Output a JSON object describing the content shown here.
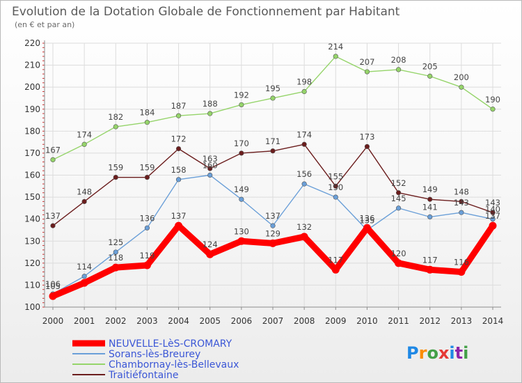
{
  "chart_data": {
    "type": "line",
    "title": "Evolution de la Dotation Globale de Fonctionnement par Habitant",
    "subtitle": "(en € et par an)",
    "x": [
      "2000",
      "2001",
      "2002",
      "2003",
      "2004",
      "2005",
      "2006",
      "2007",
      "2008",
      "2009",
      "2010",
      "2011",
      "2012",
      "2013",
      "2014"
    ],
    "ylim": [
      100,
      220
    ],
    "yticks": [
      100,
      110,
      120,
      130,
      140,
      150,
      160,
      170,
      180,
      190,
      200,
      210,
      220
    ],
    "grid": true,
    "legend_position": "bottom-left",
    "series": [
      {
        "name": "NEUVELLE-LèS-CROMARY",
        "color": "#ff0000",
        "values": [
          105,
          111,
          118,
          119,
          137,
          124,
          130,
          129,
          132,
          117,
          136,
          120,
          117,
          116,
          137
        ],
        "labels": [
          "105",
          "",
          "118",
          "119",
          "137",
          "124",
          "130",
          "129",
          "132",
          "117",
          "136",
          "120",
          "117",
          "116",
          "137"
        ]
      },
      {
        "name": "Sorans-lès-Breurey",
        "color": "#6a9fd8",
        "values": [
          106,
          114,
          125,
          136,
          158,
          160,
          149,
          137,
          156,
          150,
          135,
          145,
          141,
          143,
          140
        ],
        "labels": [
          "106",
          "114",
          "125",
          "136",
          "158",
          "160",
          "149",
          "137",
          "156",
          "150",
          "135",
          "145",
          "141",
          "143",
          "140"
        ]
      },
      {
        "name": "Chambornay-lès-Bellevaux",
        "color": "#95d46a",
        "values": [
          167,
          174,
          182,
          184,
          187,
          188,
          192,
          195,
          198,
          214,
          207,
          208,
          205,
          200,
          190
        ],
        "labels": [
          "167",
          "174",
          "182",
          "184",
          "187",
          "188",
          "192",
          "195",
          "198",
          "214",
          "207",
          "208",
          "205",
          "200",
          "190"
        ]
      },
      {
        "name": "Traitiéfontaine",
        "color": "#6b1d1d",
        "values": [
          137,
          148,
          159,
          159,
          172,
          163,
          170,
          171,
          174,
          155,
          173,
          152,
          149,
          148,
          143
        ],
        "labels": [
          "137",
          "148",
          "159",
          "159",
          "172",
          "163",
          "170",
          "171",
          "174",
          "155",
          "173",
          "152",
          "149",
          "148",
          "143"
        ]
      }
    ]
  },
  "watermark": {
    "text": "Proxiti",
    "colors": [
      "#1e88e5",
      "#fb8c00",
      "#43a047",
      "#e53935",
      "#1e88e5",
      "#8e24aa",
      "#43a047"
    ]
  },
  "colors": {
    "grid": "#dcdcdc",
    "axis": "#8c8c8c",
    "legend_text": "#3a56d6"
  }
}
